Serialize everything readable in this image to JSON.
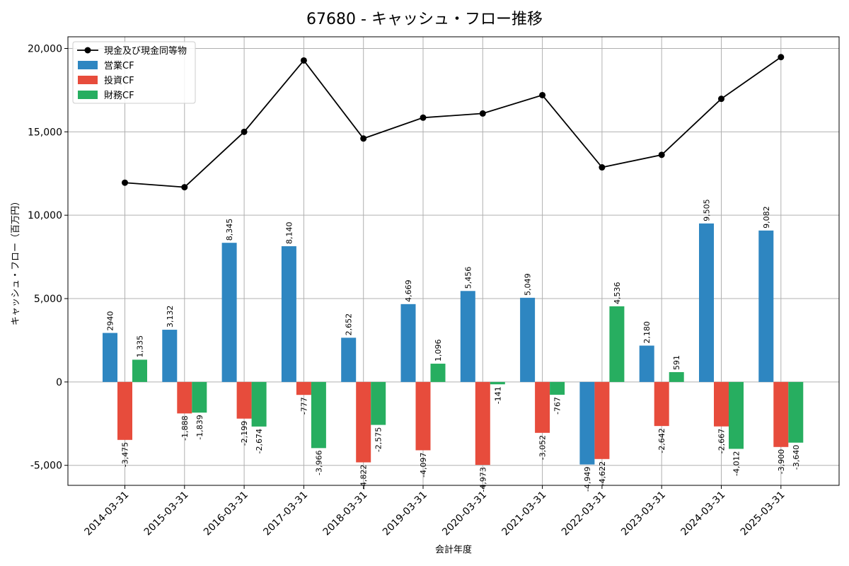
{
  "chart_data": {
    "type": "bar",
    "title": "67680 - キャッシュ・フロー推移",
    "xlabel": "会計年度",
    "ylabel": "キャッシュ・フロー（百万円）",
    "ylim": [
      -6200,
      20700
    ],
    "yticks": [
      -5000,
      0,
      5000,
      10000,
      15000,
      20000
    ],
    "ytick_labels": [
      "-5,000",
      "0",
      "5,000",
      "10,000",
      "15,000",
      "20,000"
    ],
    "grid": true,
    "legend_position": "top-left",
    "categories": [
      "2014-03-31",
      "2015-03-31",
      "2016-03-31",
      "2017-03-31",
      "2018-03-31",
      "2019-03-31",
      "2020-03-31",
      "2021-03-31",
      "2022-03-31",
      "2023-03-31",
      "2024-03-31",
      "2025-03-31"
    ],
    "series": [
      {
        "name": "現金及び現金同等物",
        "kind": "line",
        "color": "#000000",
        "values": [
          11950,
          11680,
          15000,
          19280,
          14600,
          15850,
          16100,
          17200,
          12870,
          13620,
          16980,
          19480
        ]
      },
      {
        "name": "営業CF",
        "kind": "bar",
        "color": "#2e86c1",
        "values": [
          2940,
          3132,
          8345,
          8140,
          2652,
          4669,
          5456,
          5049,
          -4949,
          2180,
          9505,
          9082
        ],
        "labels": [
          "2940",
          "3,132",
          "8,345",
          "8,140",
          "2,652",
          "4,669",
          "5,456",
          "5,049",
          "-4,949",
          "2,180",
          "9,505",
          "9,082"
        ]
      },
      {
        "name": "投資CF",
        "kind": "bar",
        "color": "#e74c3c",
        "values": [
          -3475,
          -1888,
          -2199,
          -777,
          -4822,
          -4097,
          -4973,
          -3052,
          -4622,
          -2642,
          -2667,
          -3900
        ],
        "labels": [
          "-3,475",
          "-1,888",
          "-2,199",
          "-777",
          "-4,822",
          "-4,097",
          "-4,973",
          "-3,052",
          "-4,622",
          "-2,642",
          "-2,667",
          "-3,900"
        ]
      },
      {
        "name": "財務CF",
        "kind": "bar",
        "color": "#27ae60",
        "values": [
          1335,
          -1839,
          -2674,
          -3966,
          -2575,
          1096,
          -141,
          -767,
          4536,
          591,
          -4012,
          -3640
        ],
        "labels": [
          "1,335",
          "-1,839",
          "-2,674",
          "-3,966",
          "-2,575",
          "1,096",
          "-141",
          "-767",
          "4,536",
          "591",
          "-4,012",
          "-3,640"
        ]
      }
    ]
  }
}
